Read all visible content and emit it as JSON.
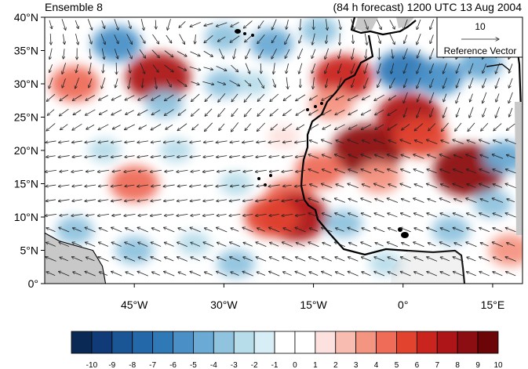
{
  "title_left": "Ensemble 8",
  "title_right": "(84 h forecast) 1200 UTC 13 Aug 2004",
  "reference": {
    "value": "10",
    "label": "Reference Vector"
  },
  "y_ticks": [
    "0°",
    "5°N",
    "10°N",
    "15°N",
    "20°N",
    "25°N",
    "30°N",
    "35°N",
    "40°N"
  ],
  "x_ticks": [
    "45°W",
    "30°W",
    "15°W",
    "0°",
    "15°E"
  ],
  "colorbar": {
    "labels": [
      "-10",
      "-9",
      "-8",
      "-7",
      "-6",
      "-5",
      "-4",
      "-3",
      "-2",
      "-1",
      "0",
      "1",
      "2",
      "3",
      "4",
      "5",
      "6",
      "7",
      "8",
      "9",
      "10"
    ],
    "colors": [
      "#0a2a55",
      "#103a78",
      "#1a5596",
      "#2368a8",
      "#3079b7",
      "#4a90c7",
      "#6aaad4",
      "#8fc3de",
      "#b7dcea",
      "#d8eef7",
      "#ffffff",
      "#ffffff",
      "#fde1de",
      "#f9bcb0",
      "#f49582",
      "#ee6c58",
      "#e2432f",
      "#c9241e",
      "#ad1518",
      "#8c0d12",
      "#6b0508"
    ]
  },
  "anomalies": [
    {
      "lon": -48,
      "lat": 36,
      "v": -5
    },
    {
      "lon": -41,
      "lat": 31,
      "v": 8
    },
    {
      "lon": -55,
      "lat": 30,
      "v": 5
    },
    {
      "lon": -40,
      "lat": 27,
      "v": -3
    },
    {
      "lon": -30,
      "lat": 30,
      "v": -3
    },
    {
      "lon": -25,
      "lat": 30,
      "v": -2
    },
    {
      "lon": -22,
      "lat": 36,
      "v": -4
    },
    {
      "lon": -30,
      "lat": 37,
      "v": -3
    },
    {
      "lon": -14,
      "lat": 38,
      "v": -3
    },
    {
      "lon": -10,
      "lat": 31,
      "v": 7
    },
    {
      "lon": -12,
      "lat": 27,
      "v": 4
    },
    {
      "lon": -6,
      "lat": 20,
      "v": 9
    },
    {
      "lon": -4,
      "lat": 16,
      "v": 4
    },
    {
      "lon": 1,
      "lat": 25,
      "v": 8
    },
    {
      "lon": 3,
      "lat": 22,
      "v": 6
    },
    {
      "lon": 0,
      "lat": 32,
      "v": -6
    },
    {
      "lon": 6,
      "lat": 31,
      "v": -5
    },
    {
      "lon": 13,
      "lat": 33,
      "v": -4
    },
    {
      "lon": 11,
      "lat": 17,
      "v": 9
    },
    {
      "lon": 17,
      "lat": 19,
      "v": -4
    },
    {
      "lon": 15,
      "lat": 12,
      "v": -3
    },
    {
      "lon": 18,
      "lat": 5,
      "v": 4
    },
    {
      "lon": -14,
      "lat": 17,
      "v": 5
    },
    {
      "lon": -19,
      "lat": 13,
      "v": 5
    },
    {
      "lon": -18,
      "lat": 10,
      "v": 8
    },
    {
      "lon": -22,
      "lat": 10,
      "v": 6
    },
    {
      "lon": -45,
      "lat": 15,
      "v": 5
    },
    {
      "lon": -28,
      "lat": 15,
      "v": -2
    },
    {
      "lon": -50,
      "lat": 20,
      "v": -2
    },
    {
      "lon": -10,
      "lat": 9,
      "v": -3
    },
    {
      "lon": -45,
      "lat": 5,
      "v": -3
    },
    {
      "lon": -35,
      "lat": 6,
      "v": -2
    },
    {
      "lon": -55,
      "lat": 8,
      "v": -3
    },
    {
      "lon": -3,
      "lat": 3,
      "v": -2
    },
    {
      "lon": 8,
      "lat": 8,
      "v": -3
    },
    {
      "lon": -28,
      "lat": 3,
      "v": -3
    },
    {
      "lon": -38,
      "lat": 20,
      "v": -2
    },
    {
      "lon": -20,
      "lat": 22,
      "v": 2
    }
  ]
}
